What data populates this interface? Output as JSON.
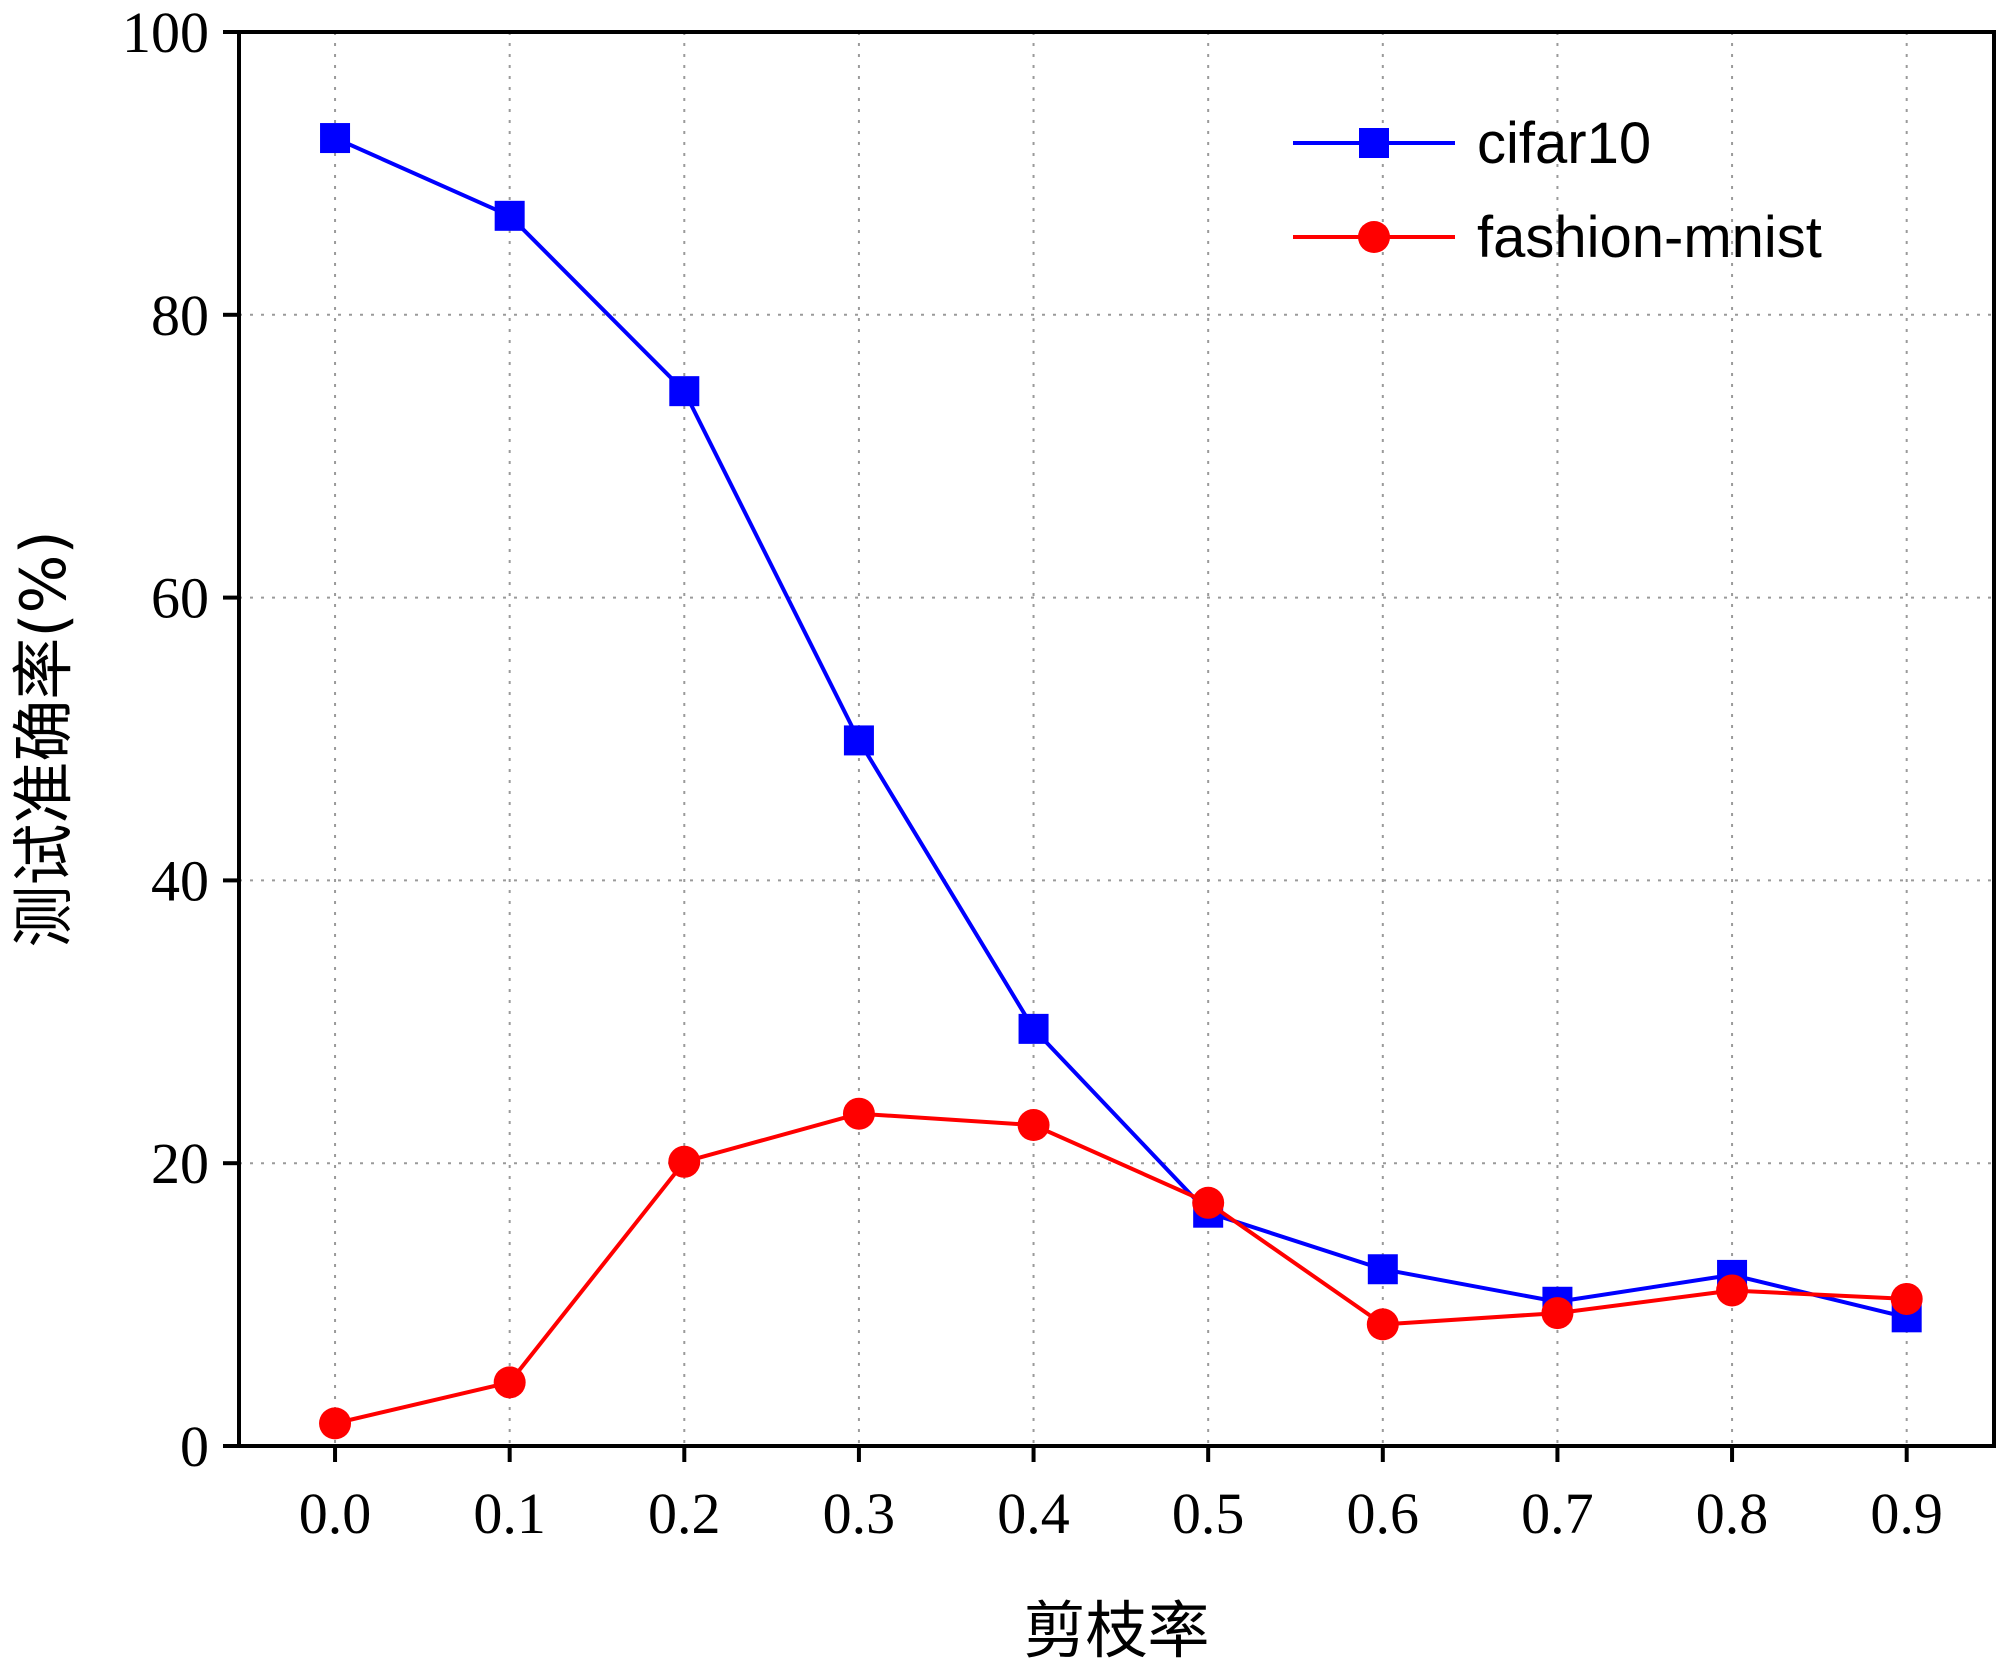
{
  "chart_data": {
    "type": "line",
    "title": "",
    "xlabel": "剪枝率",
    "ylabel": "测试准确率(%)",
    "x": [
      0.0,
      0.1,
      0.2,
      0.3,
      0.4,
      0.5,
      0.6,
      0.7,
      0.8,
      0.9
    ],
    "x_tick_labels": [
      "0.0",
      "0.1",
      "0.2",
      "0.3",
      "0.4",
      "0.5",
      "0.6",
      "0.7",
      "0.8",
      "0.9"
    ],
    "y_ticks": [
      0,
      20,
      40,
      60,
      80,
      100
    ],
    "y_tick_labels": [
      "0",
      "20",
      "40",
      "60",
      "80",
      "100"
    ],
    "xlim": [
      -0.055,
      0.95
    ],
    "ylim": [
      0,
      100
    ],
    "grid": true,
    "legend_position": "top-right",
    "series": [
      {
        "name": "cifar10",
        "color": "#0000ff",
        "marker": "square",
        "values": [
          92.5,
          87.0,
          74.6,
          49.9,
          29.5,
          16.5,
          12.5,
          10.2,
          12.1,
          9.1
        ]
      },
      {
        "name": "fashion-mnist",
        "color": "#ff0000",
        "marker": "circle",
        "values": [
          1.6,
          4.5,
          20.1,
          23.5,
          22.7,
          17.2,
          8.6,
          9.4,
          11.0,
          10.4
        ]
      }
    ]
  }
}
